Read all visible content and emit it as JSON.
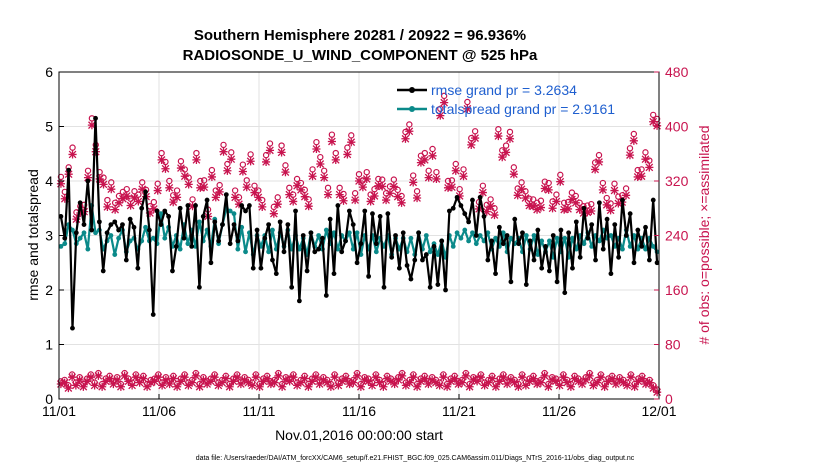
{
  "chart_data": {
    "type": "line",
    "title": "Southern Hemisphere 20281 / 20922 = 96.936%",
    "subtitle": "RADIOSONDE_U_WIND_COMPONENT @ 525 hPa",
    "xlabel": "Nov.01,2016 00:00:00 start",
    "ylabel": "rmse and totalspread",
    "y2label": "# of obs: o=possible; ×=assimilated",
    "footnote": "data file: /Users/raeder/DAI/ATM_forcXX/CAM6_setup/f.e21.FHIST_BGC.f09_025.CAM6assim.011/Diags_NTrS_2016-11/obs_diag_output.nc",
    "xlim": [
      0,
      30
    ],
    "ylim": [
      0,
      6
    ],
    "y2lim": [
      0,
      480
    ],
    "x_ticks": [
      0,
      5,
      10,
      15,
      20,
      25,
      30
    ],
    "x_tick_labels": [
      "11/01",
      "11/06",
      "11/11",
      "11/16",
      "11/21",
      "11/26",
      "12/01"
    ],
    "y_ticks": [
      "0",
      "1",
      "2",
      "3",
      "4",
      "5",
      "6"
    ],
    "y2_ticks": [
      "0",
      "80",
      "160",
      "240",
      "320",
      "400",
      "480"
    ],
    "grid": true,
    "legend_position": "top-right",
    "series": [
      {
        "name": "rmse grand pr = 3.2634",
        "color": "#000000",
        "axis": "left",
        "marker": "dot",
        "values": [
          3.35,
          2.95,
          4.2,
          1.3,
          3.05,
          3.6,
          3.2,
          4.0,
          3.1,
          5.15,
          3.25,
          2.35,
          3.05,
          3.2,
          3.25,
          3.1,
          3.2,
          2.55,
          3.3,
          3.15,
          2.4,
          3.5,
          3.8,
          3.1,
          1.55,
          3.45,
          3.2,
          3.45,
          3.35,
          2.35,
          2.8,
          3.5,
          2.95,
          3.55,
          2.8,
          3.55,
          2.05,
          3.35,
          3.65,
          2.5,
          3.25,
          2.9,
          3.2,
          3.75,
          2.85,
          3.2,
          2.9,
          3.55,
          3.45,
          3.55,
          2.4,
          3.1,
          2.4,
          2.95,
          3.2,
          2.55,
          2.3,
          3.25,
          2.7,
          3.2,
          2.05,
          3.45,
          1.8,
          3.0,
          2.35,
          3.05,
          2.7,
          2.75,
          2.95,
          1.9,
          3.3,
          2.3,
          3.55,
          2.7,
          2.9,
          3.45,
          3.2,
          2.5,
          2.85,
          3.45,
          2.25,
          3.4,
          2.85,
          3.35,
          2.05,
          3.4,
          2.6,
          3.0,
          2.4,
          3.05,
          2.45,
          2.2,
          2.55,
          3.05,
          2.55,
          2.65,
          2.05,
          2.8,
          2.1,
          2.9,
          2.0,
          3.45,
          3.5,
          3.7,
          3.55,
          3.4,
          3.25,
          3.65,
          3.0,
          3.7,
          3.35,
          2.55,
          2.9,
          2.3,
          3.15,
          2.85,
          3.0,
          2.15,
          3.3,
          2.85,
          3.05,
          2.1,
          2.9,
          2.55,
          3.1,
          2.4,
          2.8,
          2.35,
          3.0,
          2.15,
          3.1,
          1.95,
          3.05,
          2.4,
          3.25,
          2.6,
          3.5,
          2.95,
          3.2,
          2.55,
          3.6,
          2.75,
          3.3,
          2.3,
          3.2,
          2.6,
          3.65,
          3.0,
          3.4,
          2.5,
          3.1,
          2.8,
          3.15,
          2.55,
          3.65,
          2.5
        ]
      },
      {
        "name": "totalspread grand pr = 2.9161",
        "color": "#0b8a8a",
        "axis": "left",
        "marker": "dot",
        "values": [
          2.8,
          2.85,
          3.2,
          3.1,
          2.85,
          2.95,
          3.05,
          2.75,
          3.55,
          3.05,
          3.1,
          2.75,
          2.9,
          3.0,
          2.65,
          2.95,
          3.1,
          2.7,
          2.9,
          2.95,
          2.75,
          2.9,
          3.15,
          2.9,
          2.95,
          2.85,
          3.4,
          2.95,
          3.15,
          2.8,
          3.0,
          2.75,
          3.2,
          2.85,
          3.1,
          2.8,
          3.25,
          2.9,
          3.1,
          2.8,
          3.3,
          2.85,
          3.2,
          3.5,
          3.45,
          3.4,
          2.75,
          3.15,
          2.7,
          3.05,
          2.65,
          3.0,
          2.8,
          3.0,
          2.7,
          3.1,
          2.75,
          3.05,
          2.8,
          3.1,
          2.75,
          3.0,
          2.75,
          2.95,
          2.65,
          3.05,
          2.8,
          3.0,
          2.75,
          3.1,
          2.85,
          3.05,
          2.75,
          3.0,
          2.9,
          3.05,
          2.75,
          3.05,
          2.65,
          3.0,
          2.75,
          3.0,
          2.7,
          2.95,
          2.8,
          3.0,
          2.65,
          2.95,
          2.75,
          2.95,
          2.7,
          2.95,
          2.65,
          3.05,
          2.75,
          3.0,
          2.7,
          2.85,
          2.65,
          2.9,
          2.6,
          3.0,
          2.8,
          3.05,
          2.95,
          3.1,
          2.9,
          3.05,
          2.85,
          3.0,
          2.9,
          3.05,
          2.75,
          2.95,
          2.8,
          3.05,
          2.7,
          2.95,
          2.85,
          2.95,
          2.7,
          3.0,
          2.75,
          3.0,
          2.65,
          2.9,
          2.7,
          2.9,
          2.6,
          2.95,
          2.7,
          2.95,
          2.6,
          2.95,
          2.75,
          3.0,
          2.85,
          3.05,
          2.8,
          3.0,
          2.9,
          3.1,
          2.95,
          3.0,
          2.8,
          2.95,
          2.75,
          3.1,
          2.8,
          3.0,
          2.75,
          2.95,
          2.75,
          2.95,
          2.8,
          2.7
        ]
      }
    ],
    "obs_possible_upper": {
      "marker": "o",
      "color": "#c8144f",
      "axis": "right",
      "values": [
        326,
        304,
        340,
        369,
        274,
        283,
        285,
        335,
        412,
        373,
        333,
        325,
        292,
        318,
        288,
        298,
        304,
        308,
        294,
        305,
        300,
        318,
        307,
        283,
        289,
        316,
        361,
        348,
        320,
        299,
        306,
        349,
        337,
        325,
        293,
        361,
        320,
        321,
        278,
        336,
        306,
        314,
        373,
        345,
        362,
        306,
        296,
        344,
        321,
        359,
        313,
        306,
        292,
        358,
        375,
        282,
        296,
        372,
        343,
        310,
        300,
        323,
        317,
        307,
        293,
        337,
        377,
        355,
        335,
        310,
        388,
        361,
        310,
        301,
        369,
        387,
        302,
        330,
        321,
        333,
        300,
        308,
        323,
        322,
        302,
        312,
        322,
        307,
        298,
        392,
        403,
        328,
        305,
        357,
        361,
        335,
        367,
        333,
        426,
        445,
        320,
        321,
        345,
        308,
        337,
        436,
        383,
        393,
        289,
        313,
        285,
        293,
        280,
        396,
        365,
        372,
        392,
        340,
        309,
        318,
        305,
        294,
        293,
        288,
        291,
        319,
        317,
        290,
        300,
        329,
        288,
        289,
        303,
        298,
        288,
        283,
        284,
        286,
        347,
        358,
        317,
        295,
        287,
        316,
        297,
        299,
        309,
        368,
        389,
        336,
        337,
        362,
        350,
        417,
        411
      ]
    },
    "obs_assimilated_upper": {
      "marker": "×",
      "color": "#c8144f",
      "axis": "right",
      "values": [
        316,
        294,
        330,
        359,
        264,
        273,
        275,
        325,
        402,
        363,
        323,
        315,
        282,
        308,
        278,
        288,
        294,
        298,
        284,
        295,
        290,
        308,
        297,
        273,
        279,
        306,
        351,
        338,
        310,
        289,
        296,
        339,
        327,
        315,
        283,
        351,
        310,
        311,
        268,
        326,
        296,
        304,
        363,
        335,
        352,
        296,
        286,
        334,
        311,
        349,
        303,
        296,
        282,
        348,
        365,
        272,
        286,
        362,
        333,
        300,
        290,
        313,
        307,
        297,
        283,
        327,
        367,
        345,
        325,
        300,
        378,
        351,
        300,
        291,
        359,
        377,
        292,
        320,
        311,
        323,
        290,
        298,
        313,
        312,
        292,
        302,
        312,
        297,
        288,
        382,
        393,
        318,
        295,
        347,
        351,
        325,
        357,
        323,
        416,
        435,
        310,
        311,
        335,
        298,
        327,
        426,
        373,
        383,
        279,
        303,
        275,
        283,
        270,
        386,
        355,
        362,
        382,
        330,
        299,
        308,
        295,
        284,
        283,
        278,
        281,
        309,
        307,
        280,
        290,
        319,
        278,
        279,
        293,
        288,
        278,
        273,
        274,
        276,
        337,
        348,
        307,
        285,
        277,
        306,
        287,
        289,
        299,
        358,
        379,
        326,
        327,
        352,
        340,
        407,
        401
      ]
    },
    "obs_possible_lower": {
      "marker": "o",
      "color": "#c8144f",
      "axis": "right",
      "values": [
        26,
        28,
        20,
        36,
        24,
        32,
        22,
        30,
        36,
        24,
        38,
        22,
        30,
        34,
        26,
        32,
        22,
        38,
        30,
        24,
        36,
        28,
        34,
        22,
        28,
        30,
        36,
        24,
        32,
        26,
        34,
        22,
        30,
        36,
        24,
        28,
        38,
        22,
        32,
        26,
        30,
        36,
        24,
        28,
        34,
        22,
        30,
        36,
        26,
        32,
        28,
        24,
        36,
        22,
        30,
        34,
        26,
        28,
        38,
        22,
        32,
        30,
        36,
        24,
        28,
        34,
        22,
        30,
        36,
        26,
        32,
        28,
        22,
        36,
        24,
        30,
        34,
        26,
        28,
        38,
        22,
        32,
        30,
        24,
        36,
        28,
        22,
        34,
        30,
        26,
        32,
        38,
        24,
        28,
        36,
        22,
        30,
        34,
        26,
        32,
        28,
        24,
        36,
        22,
        30,
        34,
        26,
        28,
        38,
        22,
        32,
        30,
        36,
        24,
        28,
        34,
        22,
        30,
        36,
        26,
        32,
        28,
        22,
        36,
        24,
        30,
        34,
        26,
        28,
        38,
        22,
        32,
        30,
        24,
        36,
        28,
        22,
        34,
        30,
        26,
        32,
        38,
        24,
        28,
        36,
        22,
        30,
        34,
        26,
        32,
        28,
        24,
        36,
        22,
        30,
        34,
        26,
        28,
        20,
        14
      ]
    },
    "obs_assimilated_lower": {
      "marker": "×",
      "color": "#c8144f",
      "axis": "right",
      "values": [
        22,
        24,
        16,
        32,
        20,
        28,
        18,
        26,
        32,
        20,
        34,
        18,
        26,
        30,
        22,
        28,
        18,
        34,
        26,
        20,
        32,
        24,
        30,
        18,
        24,
        26,
        32,
        20,
        28,
        22,
        30,
        18,
        26,
        32,
        20,
        24,
        34,
        18,
        28,
        22,
        26,
        32,
        20,
        24,
        30,
        18,
        26,
        32,
        22,
        28,
        24,
        20,
        32,
        18,
        26,
        30,
        22,
        24,
        34,
        18,
        28,
        26,
        32,
        20,
        24,
        30,
        18,
        26,
        32,
        22,
        28,
        24,
        18,
        32,
        20,
        26,
        30,
        22,
        24,
        34,
        18,
        28,
        26,
        20,
        32,
        24,
        18,
        30,
        26,
        22,
        28,
        34,
        20,
        24,
        32,
        18,
        26,
        30,
        22,
        28,
        24,
        20,
        32,
        18,
        26,
        30,
        22,
        24,
        34,
        18,
        28,
        26,
        32,
        20,
        24,
        30,
        18,
        26,
        32,
        22,
        28,
        24,
        18,
        32,
        20,
        26,
        30,
        22,
        24,
        34,
        18,
        28,
        26,
        20,
        32,
        24,
        18,
        30,
        26,
        22,
        28,
        34,
        20,
        24,
        32,
        18,
        26,
        30,
        22,
        28,
        24,
        20,
        32,
        18,
        26,
        30,
        22,
        24,
        16,
        10
      ]
    }
  }
}
